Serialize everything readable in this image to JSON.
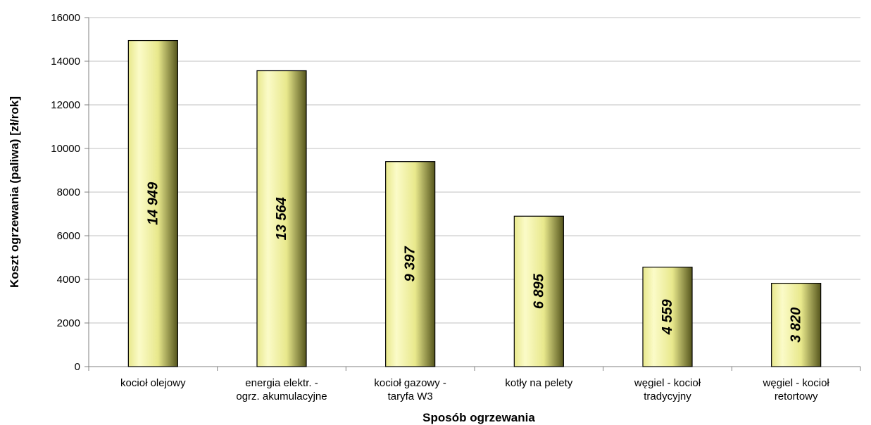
{
  "chart_data": {
    "type": "bar",
    "title": "",
    "xlabel": "Sposób ogrzewania",
    "ylabel": "Koszt ogrzewania (paliwa) [zł/rok]",
    "ylim": [
      0,
      16000
    ],
    "yticks": [
      0,
      2000,
      4000,
      6000,
      8000,
      10000,
      12000,
      14000,
      16000
    ],
    "grid": true,
    "legend": "none",
    "categories": [
      [
        "kocioł olejowy"
      ],
      [
        "energia elektr. -",
        "ogrz. akumulacyjne"
      ],
      [
        "kocioł gazowy -",
        "taryfa W3"
      ],
      [
        "kotły na pelety"
      ],
      [
        "węgiel - kocioł",
        "tradycyjny"
      ],
      [
        "węgiel - kocioł",
        "retortowy"
      ]
    ],
    "values": [
      14949,
      13564,
      9397,
      6895,
      4559,
      3820
    ],
    "value_labels": [
      "14 949",
      "13 564",
      "9 397",
      "6 895",
      "4 559",
      "3 820"
    ],
    "colors": {
      "bar_light": "#fbfbc8",
      "bar_mid": "#e8e88c",
      "bar_dark": "#55551c",
      "bar_stroke": "#000000",
      "grid": "#c0c0c0",
      "axis": "#808080"
    }
  }
}
